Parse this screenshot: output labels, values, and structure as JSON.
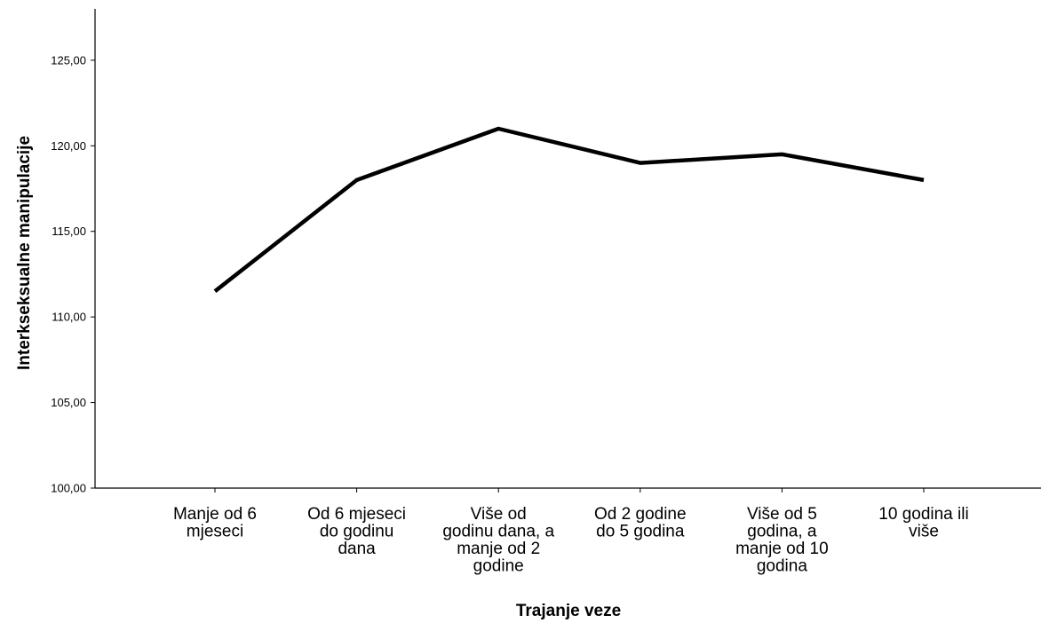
{
  "chart_data": {
    "type": "line",
    "title": "",
    "xlabel": "Trajanje veze",
    "ylabel": "Interkseksualne manipulacije",
    "categories": [
      [
        "Manje od 6",
        "mjeseci"
      ],
      [
        "Od 6 mjeseci",
        "do godinu",
        "dana"
      ],
      [
        "Više od",
        "godinu dana, a",
        "manje od 2",
        "godine"
      ],
      [
        "Od 2 godine",
        "do 5 godina"
      ],
      [
        "Više od 5",
        "godina, a",
        "manje od 10",
        "godina"
      ],
      [
        "10 godina ili",
        "više"
      ]
    ],
    "series": [
      {
        "values": [
          111.5,
          118.0,
          121.0,
          119.0,
          119.5,
          118.0
        ],
        "color": "#000000"
      }
    ],
    "ylim": [
      100,
      128
    ],
    "yticks": [
      100,
      105,
      110,
      115,
      120,
      125
    ],
    "ytick_labels": [
      "100,00",
      "105,00",
      "110,00",
      "115,00",
      "120,00",
      "125,00"
    ],
    "grid": false,
    "legend": "none"
  }
}
